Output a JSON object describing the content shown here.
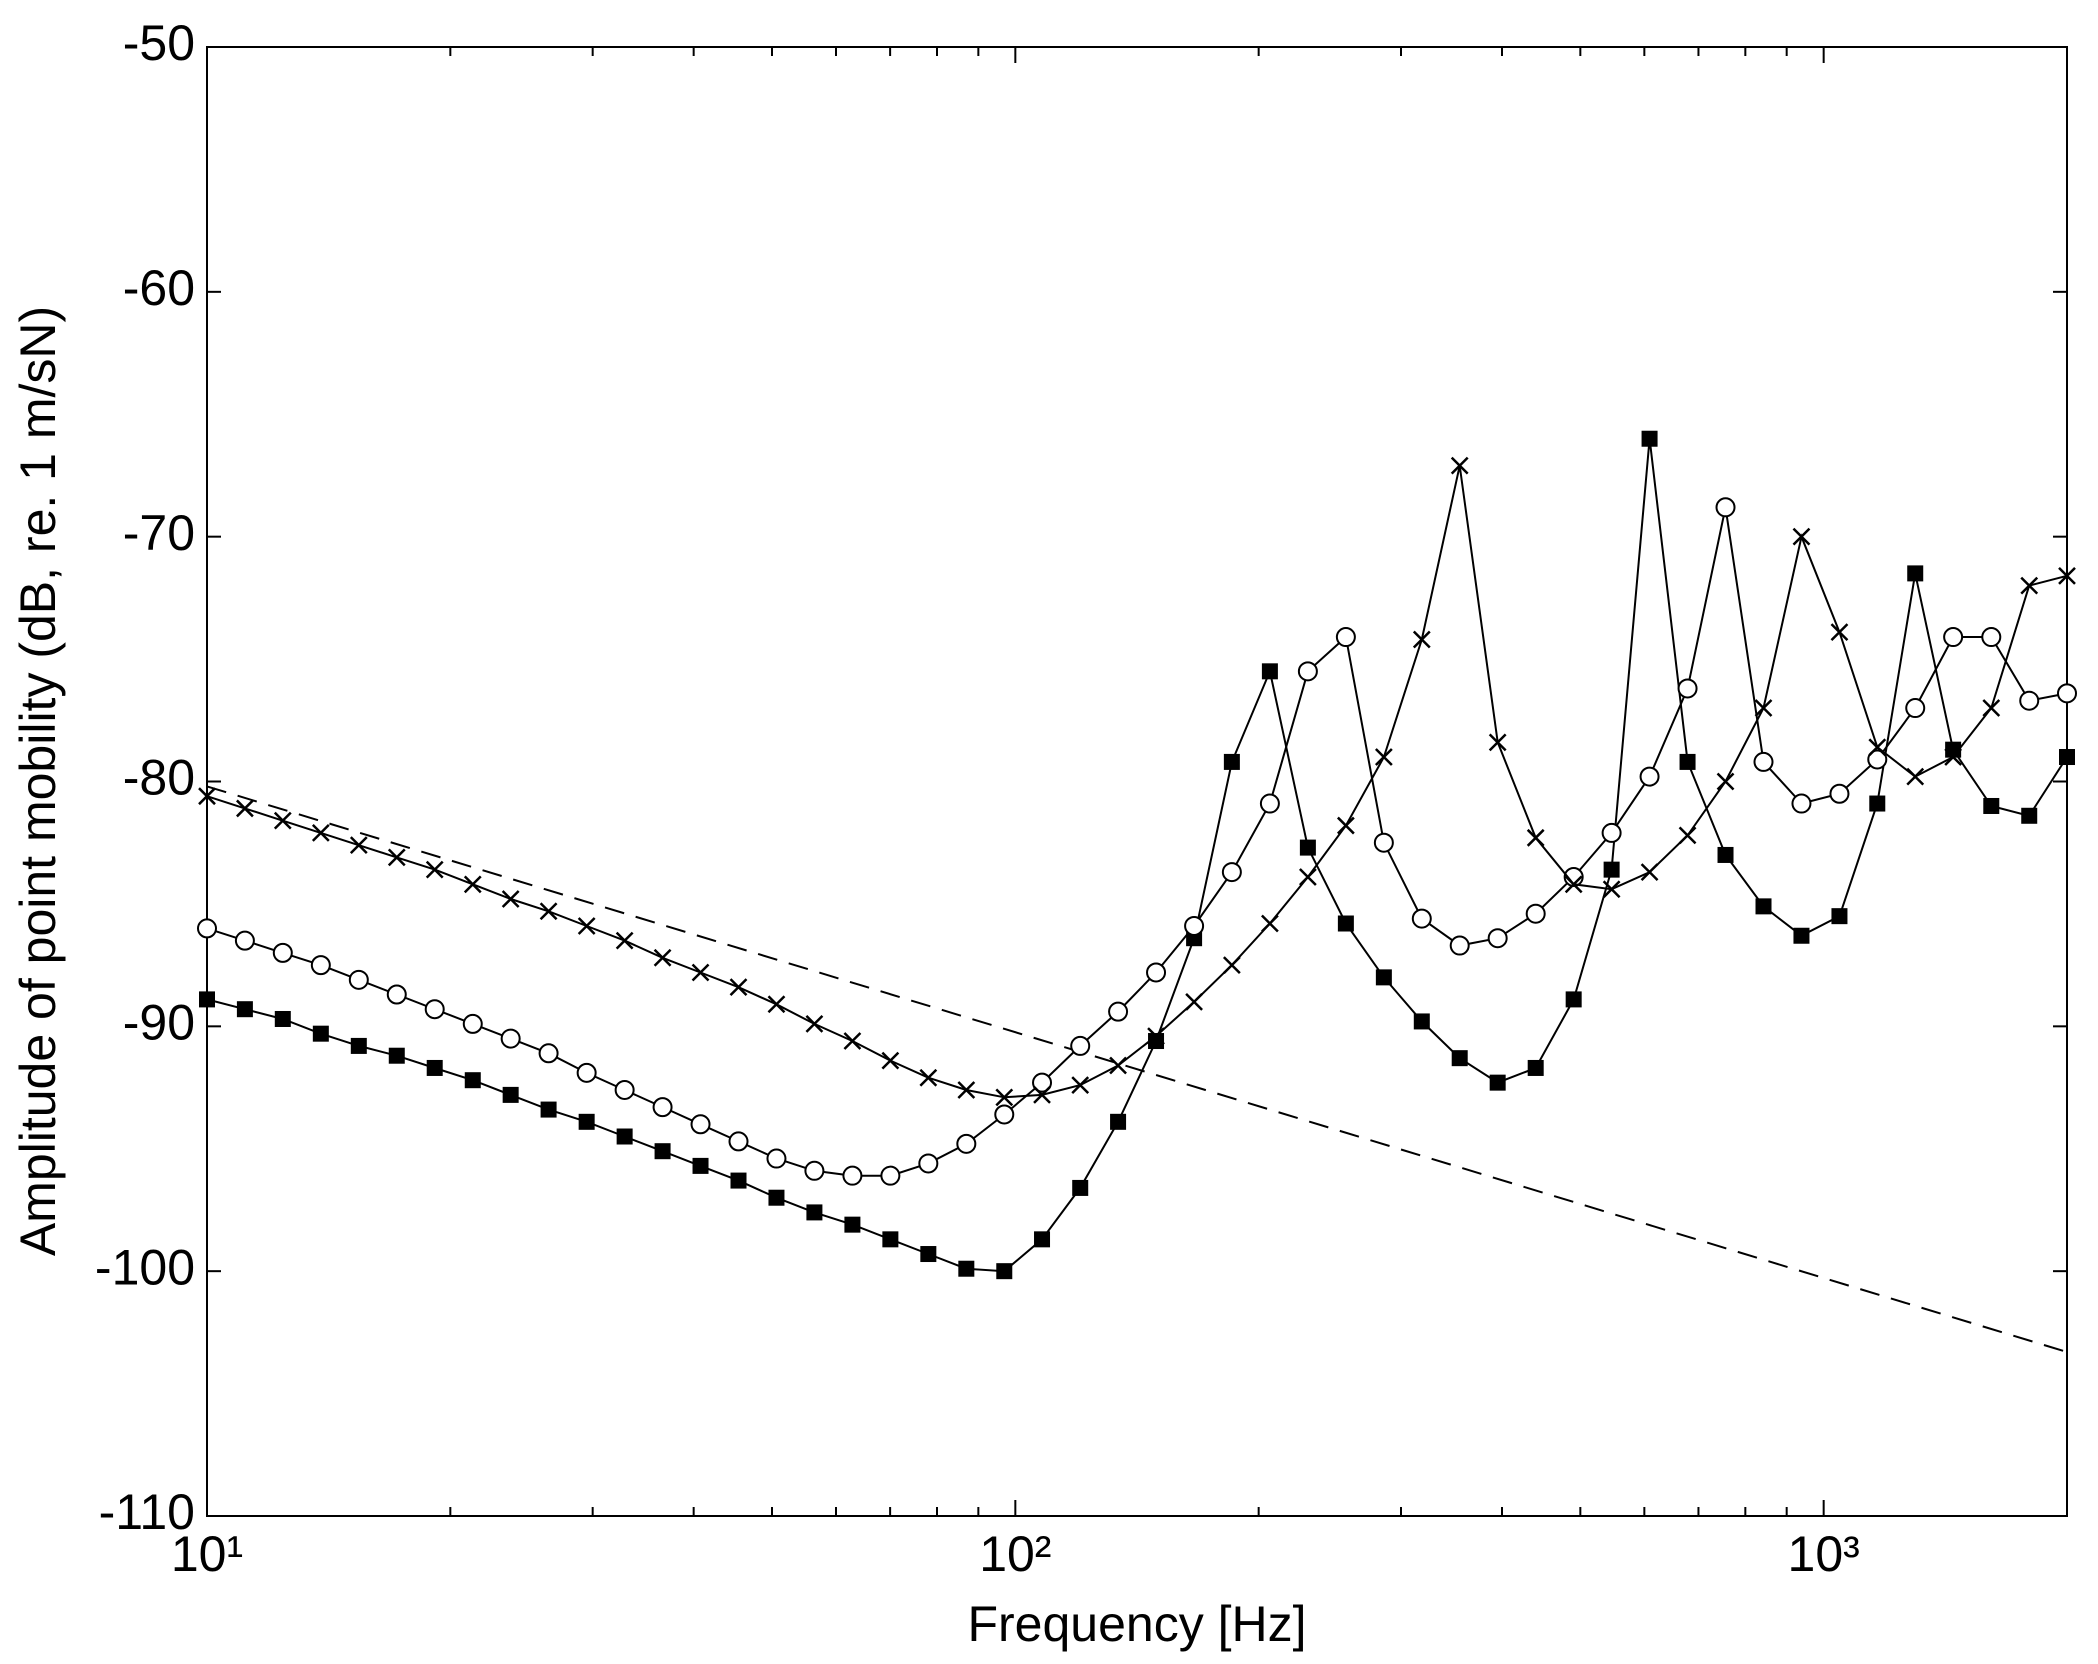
{
  "chart_data": {
    "type": "line",
    "xlabel": "Frequency [Hz]",
    "ylabel": "Amplitude of point mobility (dB, re. 1 m/sN)",
    "xscale": "log",
    "xlim": [
      10,
      2000
    ],
    "ylim": [
      -110,
      -50
    ],
    "xticks": [
      {
        "value": 10,
        "label": "10¹"
      },
      {
        "value": 100,
        "label": "10²"
      },
      {
        "value": 1000,
        "label": "10³"
      }
    ],
    "xminorticks": [
      20,
      30,
      40,
      50,
      60,
      70,
      80,
      90,
      200,
      300,
      400,
      500,
      600,
      700,
      800,
      900
    ],
    "yticks": [
      -110,
      -100,
      -90,
      -80,
      -70,
      -60,
      -50
    ],
    "x": [
      10,
      11.14,
      12.41,
      13.83,
      15.41,
      17.17,
      19.13,
      21.32,
      23.75,
      26.46,
      29.49,
      32.86,
      36.61,
      40.79,
      45.45,
      50.64,
      56.42,
      62.87,
      70.05,
      78.05,
      86.97,
      96.9,
      107.9,
      120.3,
      134.0,
      149.3,
      166.4,
      185.3,
      206.5,
      230.1,
      256.4,
      285.7,
      318.3,
      354.6,
      395.1,
      440.3,
      490.6,
      546.6,
      609.0,
      678.6,
      756.1,
      842.5,
      938.7,
      1046,
      1165,
      1298,
      1446,
      1612,
      1796,
      2000
    ],
    "series": [
      {
        "color": "#000000",
        "marker": "square",
        "values": [
          -88.9,
          -89.3,
          -89.7,
          -90.3,
          -90.8,
          -91.2,
          -91.7,
          -92.2,
          -92.8,
          -93.4,
          -93.9,
          -94.5,
          -95.1,
          -95.7,
          -96.3,
          -97.0,
          -97.6,
          -98.1,
          -98.7,
          -99.3,
          -99.9,
          -100.0,
          -98.7,
          -96.6,
          -93.9,
          -90.6,
          -86.4,
          -79.2,
          -75.5,
          -82.7,
          -85.8,
          -88.0,
          -89.8,
          -91.3,
          -92.3,
          -91.7,
          -88.9,
          -83.6,
          -66.0,
          -79.2,
          -83.0,
          -85.1,
          -86.3,
          -85.5,
          -80.9,
          -71.5,
          -78.7,
          -81.0,
          -81.4,
          -79.0
        ]
      },
      {
        "color": "#000000",
        "marker": "circle",
        "values": [
          -86.0,
          -86.5,
          -87.0,
          -87.5,
          -88.1,
          -88.7,
          -89.3,
          -89.9,
          -90.5,
          -91.1,
          -91.9,
          -92.6,
          -93.3,
          -94.0,
          -94.7,
          -95.4,
          -95.9,
          -96.1,
          -96.1,
          -95.6,
          -94.8,
          -93.6,
          -92.3,
          -90.8,
          -89.4,
          -87.8,
          -85.9,
          -83.7,
          -80.9,
          -75.5,
          -74.1,
          -82.5,
          -85.6,
          -86.7,
          -86.4,
          -85.4,
          -83.9,
          -82.1,
          -79.8,
          -76.2,
          -68.8,
          -79.2,
          -80.9,
          -80.5,
          -79.1,
          -77.0,
          -74.1,
          -74.1,
          -76.7,
          -76.4
        ]
      },
      {
        "color": "#000000",
        "marker": "cross",
        "values": [
          -80.6,
          -81.1,
          -81.6,
          -82.1,
          -82.6,
          -83.1,
          -83.6,
          -84.2,
          -84.8,
          -85.3,
          -85.9,
          -86.5,
          -87.2,
          -87.8,
          -88.4,
          -89.1,
          -89.9,
          -90.6,
          -91.4,
          -92.1,
          -92.6,
          -92.9,
          -92.8,
          -92.4,
          -91.6,
          -90.4,
          -89.0,
          -87.5,
          -85.8,
          -83.9,
          -81.8,
          -79.0,
          -74.2,
          -67.1,
          -78.4,
          -82.3,
          -84.2,
          -84.4,
          -83.7,
          -82.2,
          -80.0,
          -77.0,
          -70.0,
          -73.9,
          -78.6,
          -79.8,
          -79.0,
          -77.0,
          -72.0,
          -71.6
        ]
      }
    ],
    "reference": {
      "color": "#000000",
      "dash": true,
      "x": [
        10,
        2000
      ],
      "values": [
        -80.2,
        -103.3
      ]
    }
  }
}
